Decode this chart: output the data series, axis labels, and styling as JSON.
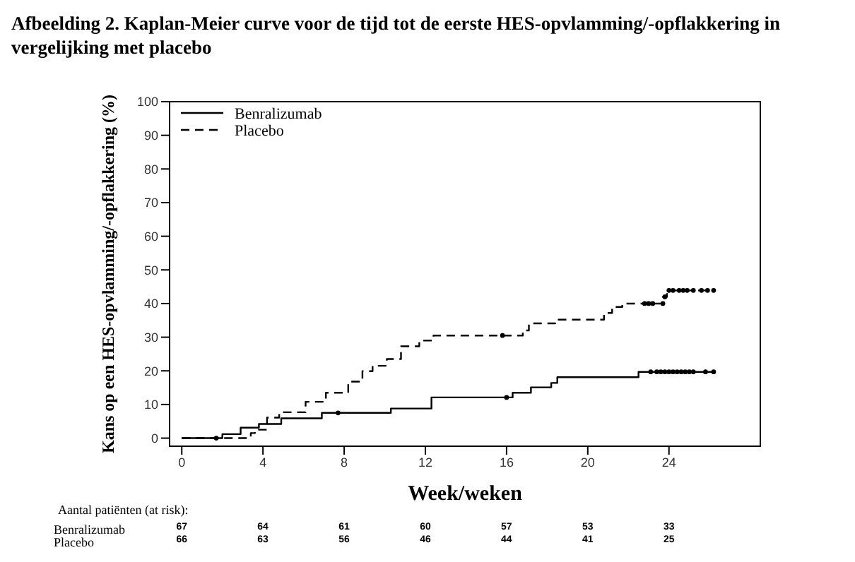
{
  "chart_data": {
    "type": "step",
    "title": "Afbeelding 2. Kaplan-Meier curve voor de tijd tot de eerste HES-opvlamming/-opflakkering in vergelijking met placebo",
    "xlabel": "Week/weken",
    "ylabel": "Kans op een HES-opvlamming/-opflakkering (%)",
    "xlim": [
      -0.6,
      28.5
    ],
    "xticks": [
      0,
      4,
      8,
      12,
      16,
      20,
      24
    ],
    "ylim": [
      -2.4,
      100
    ],
    "yticks": [
      0,
      10,
      20,
      30,
      40,
      50,
      60,
      70,
      80,
      90,
      100
    ],
    "legend": "top left",
    "marker": "none",
    "series": [
      {
        "name": "Benralizumab",
        "color": "#000000",
        "line_style": "solid",
        "x": [
          0,
          2.0,
          2.9,
          3.8,
          4.9,
          6.9,
          10.3,
          12.3,
          16.3,
          17.2,
          18.2,
          18.5,
          22.5,
          26.2
        ],
        "values": [
          0,
          1.2,
          3.1,
          4.2,
          5.9,
          7.5,
          8.8,
          12.1,
          13.5,
          15.1,
          16.4,
          18.1,
          19.7,
          19.7
        ]
      },
      {
        "name": "Placebo",
        "color": "#000000",
        "line_style": "dashed",
        "x": [
          0,
          3.4,
          3.6,
          4.2,
          4.8,
          6.1,
          7.1,
          8.2,
          8.9,
          9.4,
          10.1,
          10.8,
          11.7,
          12.4,
          16.8,
          17.1,
          18.4,
          20.8,
          21.2,
          21.7,
          23.7,
          23.9,
          26.2
        ],
        "values": [
          0,
          1.5,
          2.5,
          6.1,
          7.7,
          10.8,
          13.5,
          16.8,
          19.9,
          21.5,
          23.5,
          27.3,
          29,
          30.5,
          32,
          34.1,
          35.2,
          37.2,
          39,
          40,
          42,
          43.9,
          43.9
        ]
      },
      {
        "type": "scatter",
        "color": "#000000",
        "marker": "circle",
        "x": [
          1.7,
          7.7,
          16.0,
          23.1,
          23.4,
          23.6,
          23.8,
          24.0,
          24.2,
          24.4,
          24.6,
          24.8,
          25.0,
          25.2,
          25.8,
          26.2
        ],
        "values": [
          0,
          7.5,
          12.1,
          19.7,
          19.7,
          19.7,
          19.7,
          19.7,
          19.7,
          19.7,
          19.7,
          19.7,
          19.7,
          19.7,
          19.7,
          19.7
        ]
      },
      {
        "type": "scatter",
        "color": "#000000",
        "marker": "circle",
        "x": [
          15.8,
          22.8,
          23.0,
          23.2,
          23.7,
          23.8,
          24.0,
          24.2,
          24.5,
          24.7,
          24.9,
          25.2,
          25.6,
          25.9,
          26.2
        ],
        "values": [
          30.5,
          40,
          40,
          40,
          40,
          42,
          43.9,
          43.9,
          43.9,
          43.9,
          43.9,
          43.9,
          43.9,
          43.9,
          43.9
        ]
      }
    ],
    "annotations": [
      "Aantal patiënten (at risk):",
      "Benralizumab",
      "67",
      "64",
      "61",
      "60",
      "57",
      "53",
      "33",
      "Placebo",
      "66",
      "63",
      "56",
      "46",
      "44",
      "41",
      "25"
    ]
  }
}
